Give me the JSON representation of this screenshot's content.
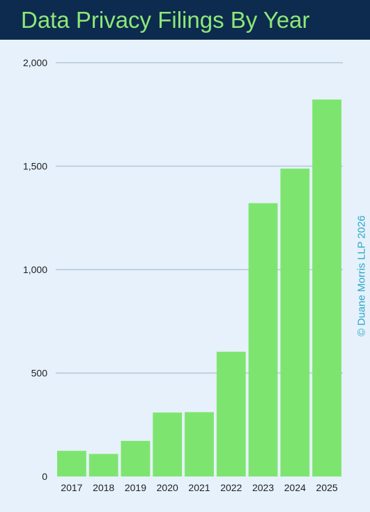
{
  "title": "Data Privacy Filings By Year",
  "copyright": "© Duane Morris LLP 2026",
  "colors": {
    "header_bg": "#0d2b4e",
    "title": "#8de878",
    "background": "#e6f1fb",
    "bar": "#7de56f",
    "grid": "#b4c7d8",
    "tick_text": "#1f1f1f",
    "copyright": "#2aa7c6"
  },
  "chart_data": {
    "type": "bar",
    "title": "Data Privacy Filings By Year",
    "xlabel": "",
    "ylabel": "",
    "categories": [
      "2017",
      "2018",
      "2019",
      "2020",
      "2021",
      "2022",
      "2023",
      "2024",
      "2025"
    ],
    "values": [
      124,
      109,
      172,
      309,
      311,
      603,
      1321,
      1488,
      1822
    ],
    "ylim": [
      0,
      2000
    ],
    "yticks": [
      0,
      500,
      1000,
      1500,
      2000
    ],
    "ytick_labels": [
      "0",
      "500",
      "1,000",
      "1,500",
      "2,000"
    ],
    "grid": true,
    "legend": "none"
  }
}
